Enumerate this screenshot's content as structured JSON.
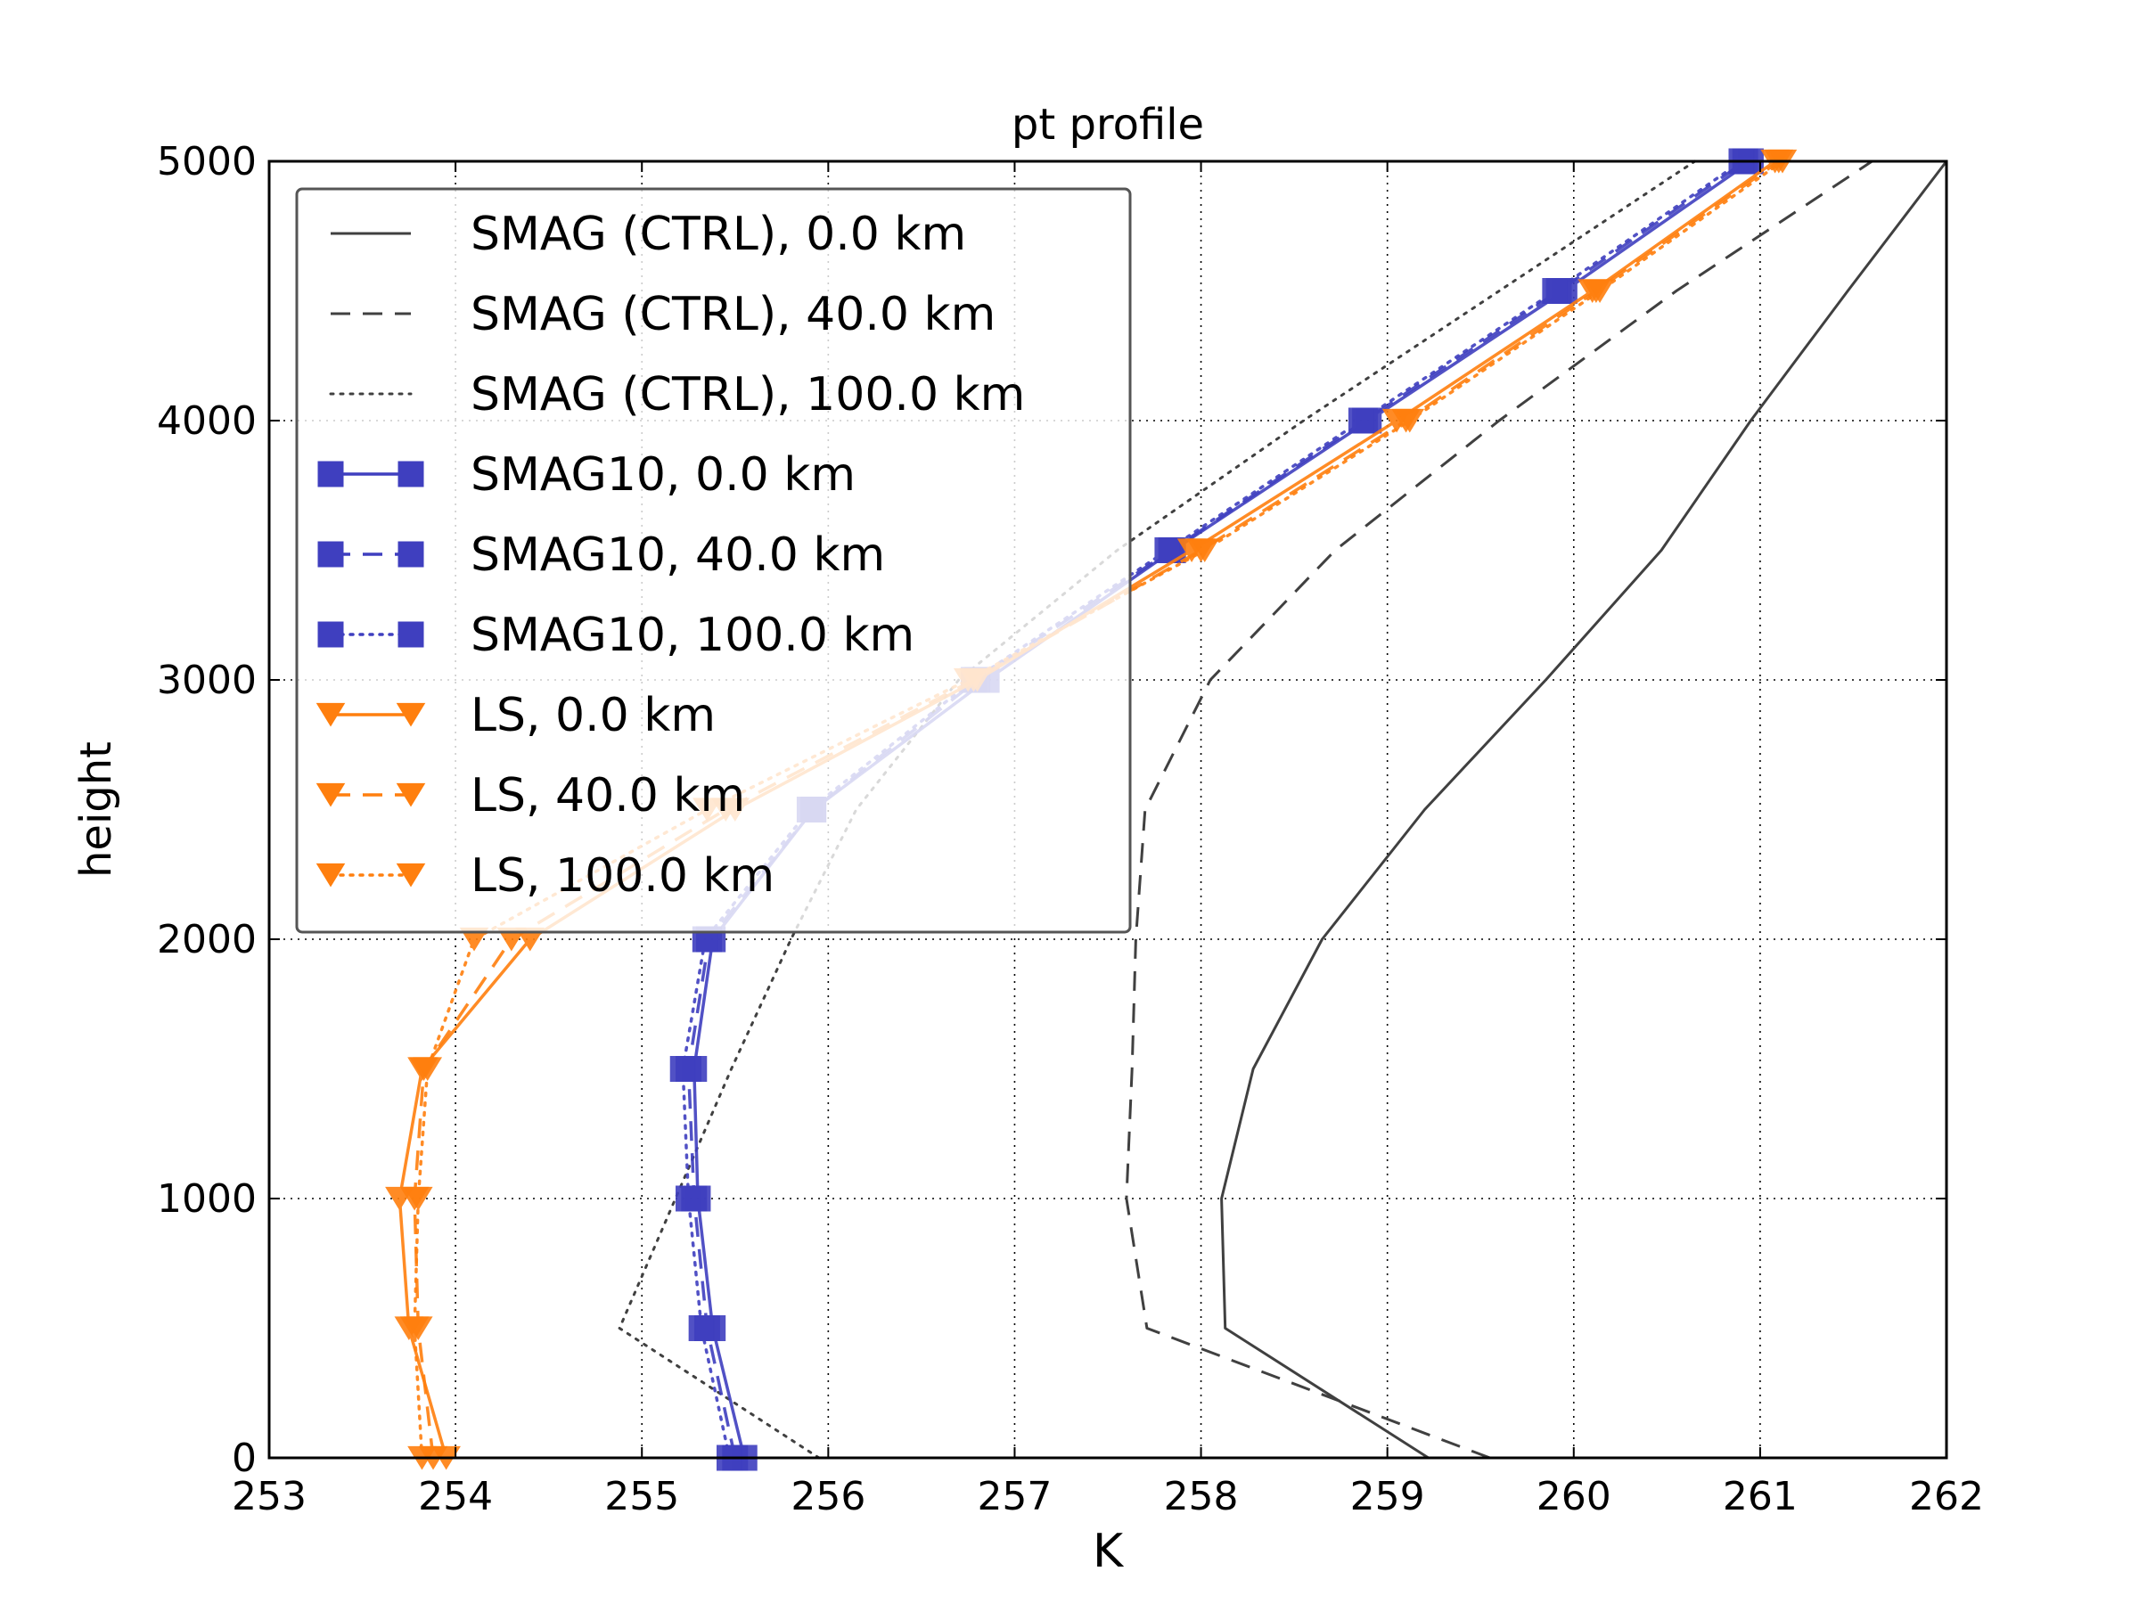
{
  "chart_data": {
    "type": "line",
    "title": "pt profile",
    "xlabel": "K",
    "ylabel": "height",
    "xlim": [
      253,
      262
    ],
    "ylim": [
      0,
      5000
    ],
    "xticks": [
      253,
      254,
      255,
      256,
      257,
      258,
      259,
      260,
      261,
      262
    ],
    "yticks": [
      0,
      1000,
      2000,
      3000,
      4000,
      5000
    ],
    "grid": true,
    "legend_position": "upper-left",
    "colors": {
      "ctrl": "#404040",
      "smag10": "#3f3fbf",
      "ls": "#ff7f0e"
    },
    "y": [
      0,
      500,
      1000,
      1500,
      2000,
      2500,
      3000,
      3500,
      4000,
      4500,
      5000
    ],
    "series": [
      {
        "name": "SMAG (CTRL), 0.0 km",
        "group": "ctrl",
        "line": "solid",
        "marker": "none",
        "x": [
          259.22,
          258.13,
          258.11,
          258.28,
          258.65,
          259.2,
          259.85,
          260.47,
          260.95,
          261.47,
          262.0
        ]
      },
      {
        "name": "SMAG (CTRL), 40.0 km",
        "group": "ctrl",
        "line": "dashed",
        "marker": "none",
        "x": [
          259.55,
          257.71,
          257.6,
          257.63,
          257.65,
          257.7,
          258.05,
          258.72,
          259.6,
          260.55,
          261.6
        ]
      },
      {
        "name": "SMAG (CTRL), 100.0 km",
        "group": "ctrl",
        "line": "dotted",
        "marker": "none",
        "x": [
          255.95,
          254.88,
          255.18,
          255.48,
          255.8,
          256.15,
          256.7,
          257.55,
          258.55,
          259.6,
          260.65
        ]
      },
      {
        "name": "SMAG10, 0.0 km",
        "group": "smag10",
        "line": "solid",
        "marker": "square",
        "x": [
          255.55,
          255.38,
          255.3,
          255.28,
          255.38,
          255.92,
          256.85,
          257.85,
          258.9,
          259.95,
          260.95
        ]
      },
      {
        "name": "SMAG10, 40.0 km",
        "group": "smag10",
        "line": "dashed",
        "marker": "square",
        "x": [
          255.5,
          255.35,
          255.28,
          255.25,
          255.36,
          255.92,
          256.8,
          257.84,
          258.88,
          259.92,
          260.92
        ]
      },
      {
        "name": "SMAG10, 100.0 km",
        "group": "smag10",
        "line": "dotted",
        "marker": "square",
        "x": [
          255.47,
          255.32,
          255.25,
          255.22,
          255.34,
          255.9,
          256.78,
          257.82,
          258.86,
          259.9,
          260.9
        ]
      },
      {
        "name": "LS, 0.0 km",
        "group": "ls",
        "line": "solid",
        "marker": "triangle-down",
        "x": [
          253.95,
          253.75,
          253.7,
          253.82,
          254.4,
          255.5,
          256.8,
          257.95,
          259.05,
          260.1,
          261.08
        ]
      },
      {
        "name": "LS, 40.0 km",
        "group": "ls",
        "line": "dashed",
        "marker": "triangle-down",
        "x": [
          253.88,
          253.8,
          253.78,
          253.83,
          254.3,
          255.45,
          256.78,
          258.0,
          259.1,
          260.12,
          261.1
        ]
      },
      {
        "name": "LS, 100.0 km",
        "group": "ls",
        "line": "dotted",
        "marker": "triangle-down",
        "x": [
          253.82,
          253.78,
          253.8,
          253.85,
          254.1,
          255.35,
          256.75,
          258.02,
          259.12,
          260.14,
          261.12
        ]
      }
    ]
  }
}
